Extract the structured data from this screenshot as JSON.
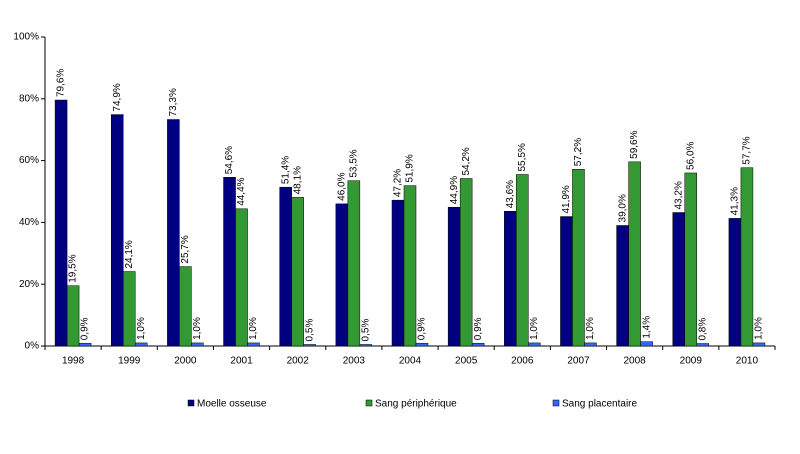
{
  "chart_data": {
    "type": "bar",
    "categories": [
      "1998",
      "1999",
      "2000",
      "2001",
      "2002",
      "2003",
      "2004",
      "2005",
      "2006",
      "2007",
      "2008",
      "2009",
      "2010"
    ],
    "series": [
      {
        "name": "Moelle osseuse",
        "color": "#000080",
        "values": [
          79.6,
          74.9,
          73.3,
          54.6,
          51.4,
          46.0,
          47.2,
          44.9,
          43.6,
          41.9,
          39.0,
          43.2,
          41.3
        ],
        "value_labels": [
          "79,6%",
          "74,9%",
          "73,3%",
          "54,6%",
          "51,4%",
          "46,0%",
          "47,2%",
          "44,9%",
          "43,6%",
          "41,9%",
          "39,0%",
          "43,2%",
          "41,3%"
        ]
      },
      {
        "name": "Sang périphérique",
        "color": "#339933",
        "values": [
          19.5,
          24.1,
          25.7,
          44.4,
          48.1,
          53.5,
          51.9,
          54.2,
          55.5,
          57.2,
          59.6,
          56.0,
          57.7
        ],
        "value_labels": [
          "19,5%",
          "24,1%",
          "25,7%",
          "44,4%",
          "48,1%",
          "53,5%",
          "51,9%",
          "54,2%",
          "55,5%",
          "57,2%",
          "59,6%",
          "56,0%",
          "57,7%"
        ]
      },
      {
        "name": "Sang placentaire",
        "color": "#3366ff",
        "values": [
          0.9,
          1.0,
          1.0,
          1.0,
          0.5,
          0.5,
          0.9,
          0.9,
          1.0,
          1.0,
          1.4,
          0.8,
          1.0
        ],
        "value_labels": [
          "0,9%",
          "1,0%",
          "1,0%",
          "1,0%",
          "0,5%",
          "0,5%",
          "0,9%",
          "0,9%",
          "1,0%",
          "1,0%",
          "1,4%",
          "0,8%",
          "1,0%"
        ]
      }
    ],
    "ylim": [
      0,
      100
    ],
    "yticks": [
      {
        "value": 0,
        "label": "0%"
      },
      {
        "value": 20,
        "label": "20%"
      },
      {
        "value": 40,
        "label": "40%"
      },
      {
        "value": 60,
        "label": "60%"
      },
      {
        "value": 80,
        "label": "80%"
      },
      {
        "value": 100,
        "label": "100%"
      }
    ],
    "legend": "bottom"
  }
}
